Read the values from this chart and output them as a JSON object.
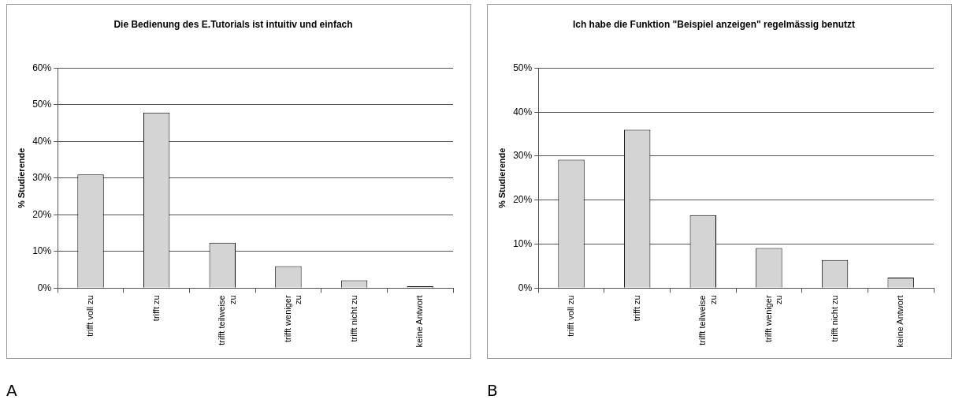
{
  "chart_data": [
    {
      "type": "bar",
      "title": "Die Bedienung des E.Tutorials ist intuitiv und einfach",
      "ylabel": "% Studierende",
      "categories": [
        "trifft voll zu",
        "trifft zu",
        "trifft teilweise zu",
        "trifft weniger zu",
        "trifft nicht zu",
        "keine Antwort"
      ],
      "values": [
        31.0,
        47.9,
        12.4,
        6.0,
        2.1,
        0.5
      ],
      "color": "#d4d4d4",
      "ylim": [
        0,
        60
      ],
      "yticks": [
        {
          "value": 0,
          "label": "0%"
        },
        {
          "value": 10,
          "label": "10%"
        },
        {
          "value": 20,
          "label": "20%"
        },
        {
          "value": 30,
          "label": "30%"
        },
        {
          "value": 40,
          "label": "40%"
        },
        {
          "value": 50,
          "label": "50%"
        },
        {
          "value": 60,
          "label": "60%"
        }
      ],
      "grid": "y",
      "annotations": [
        "A"
      ]
    },
    {
      "type": "bar",
      "title": "Ich habe die Funktion \"Beispiel anzeigen\" regelmässig benutzt",
      "ylabel": "% Studierende",
      "categories": [
        "trifft voll zu",
        "trifft zu",
        "trifft teilweise zu",
        "trifft weniger zu",
        "trifft nicht zu",
        "keine Antwort"
      ],
      "values": [
        29.2,
        36.0,
        16.6,
        9.1,
        6.4,
        2.4
      ],
      "color": "#d4d4d4",
      "ylim": [
        0,
        50
      ],
      "yticks": [
        {
          "value": 0,
          "label": "0%"
        },
        {
          "value": 10,
          "label": "10%"
        },
        {
          "value": 20,
          "label": "20%"
        },
        {
          "value": 30,
          "label": "30%"
        },
        {
          "value": 40,
          "label": "40%"
        },
        {
          "value": 50,
          "label": "50%"
        }
      ],
      "grid": "y",
      "annotations": [
        "B"
      ]
    }
  ]
}
